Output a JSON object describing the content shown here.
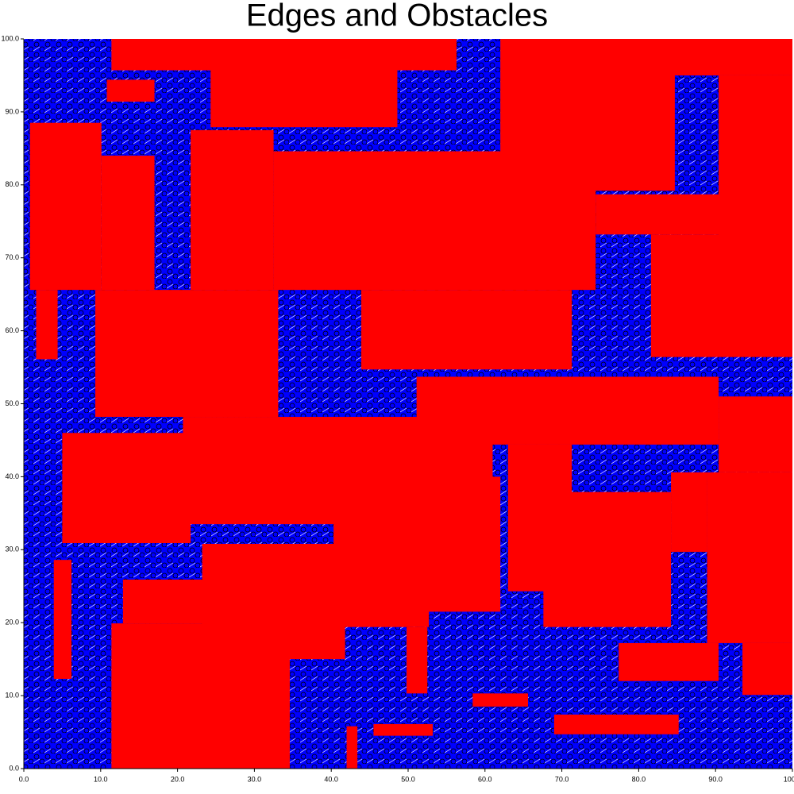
{
  "chart_data": {
    "type": "obstacle-map",
    "title": "Edges and Obstacles",
    "obstacle_color": "#ff0000",
    "edge_color": "#0000ff",
    "xlim": [
      0,
      100
    ],
    "ylim": [
      0,
      100
    ],
    "xticks": [
      {
        "value": 0,
        "label": "0.0"
      },
      {
        "value": 10,
        "label": "10.0"
      },
      {
        "value": 20,
        "label": "20.0"
      },
      {
        "value": 30,
        "label": "30.0"
      },
      {
        "value": 40,
        "label": "40.0"
      },
      {
        "value": 50,
        "label": "50.0"
      },
      {
        "value": 60,
        "label": "60.0"
      },
      {
        "value": 70,
        "label": "70.0"
      },
      {
        "value": 80,
        "label": "80.0"
      },
      {
        "value": 90,
        "label": "90.0"
      },
      {
        "value": 100,
        "label": "100.0"
      }
    ],
    "yticks": [
      {
        "value": 0,
        "label": "0.0"
      },
      {
        "value": 10,
        "label": "10.0"
      },
      {
        "value": 20,
        "label": "20.0"
      },
      {
        "value": 30,
        "label": "30.0"
      },
      {
        "value": 40,
        "label": "40.0"
      },
      {
        "value": 50,
        "label": "50.0"
      },
      {
        "value": 60,
        "label": "60.0"
      },
      {
        "value": 70,
        "label": "70.0"
      },
      {
        "value": 80,
        "label": "80.0"
      },
      {
        "value": 90,
        "label": "90.0"
      },
      {
        "value": 100,
        "label": "100.0"
      }
    ],
    "obstacles": [
      [
        11.4,
        95.7,
        56.3,
        100
      ],
      [
        24.3,
        87.9,
        48.6,
        96
      ],
      [
        0.8,
        65.6,
        10.1,
        88.5
      ],
      [
        10.1,
        65.6,
        17.0,
        84
      ],
      [
        21.7,
        65.6,
        32.5,
        87.5
      ],
      [
        32.5,
        65.6,
        74.4,
        84.6
      ],
      [
        62,
        79.2,
        84.7,
        100
      ],
      [
        80.6,
        95,
        100,
        100
      ],
      [
        90.4,
        72.7,
        100,
        95
      ],
      [
        74.4,
        73.2,
        100,
        78.7
      ],
      [
        81.6,
        56.4,
        100,
        73.2
      ],
      [
        9.3,
        48.2,
        33.1,
        65.6
      ],
      [
        1.6,
        56.1,
        4.4,
        65.6
      ],
      [
        43.9,
        54.7,
        71.3,
        65.6
      ],
      [
        51.1,
        44.4,
        90.4,
        53.7
      ],
      [
        5,
        30.9,
        21.7,
        46
      ],
      [
        20.7,
        33.5,
        61,
        48.2
      ],
      [
        40.3,
        21.5,
        62,
        40
      ],
      [
        63,
        24.3,
        71.3,
        44.4
      ],
      [
        67.6,
        19.4,
        84.2,
        37.9
      ],
      [
        88.9,
        17.2,
        100,
        40.6
      ],
      [
        84.2,
        29.7,
        88.9,
        40.6
      ],
      [
        90.4,
        40.6,
        100,
        51
      ],
      [
        77.4,
        12,
        90.4,
        17.2
      ],
      [
        93.5,
        10.1,
        100,
        17.2
      ],
      [
        11.4,
        0,
        34.6,
        19.9
      ],
      [
        12.9,
        19.9,
        36.7,
        25.9
      ],
      [
        23.2,
        15,
        41.8,
        30.8
      ],
      [
        36.2,
        19.4,
        52.7,
        25.9
      ],
      [
        3.9,
        12.3,
        6.2,
        28.6
      ],
      [
        49.8,
        10.3,
        52.5,
        19.4
      ],
      [
        58.4,
        8.5,
        65.6,
        10.3
      ],
      [
        69,
        4.7,
        85.2,
        7.4
      ],
      [
        45.5,
        4.5,
        53.2,
        6.1
      ],
      [
        42,
        0,
        43.4,
        5.8
      ],
      [
        10.8,
        91.4,
        17.0,
        94.4
      ]
    ]
  }
}
